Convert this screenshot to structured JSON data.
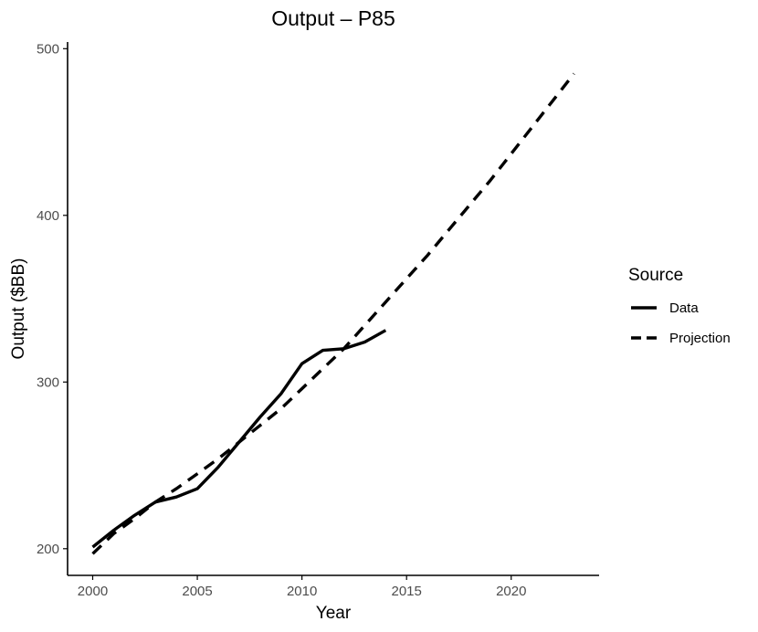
{
  "chart_data": {
    "type": "line",
    "title": "Output – P85",
    "xlabel": "Year",
    "ylabel": "Output ($BB)",
    "xlim": [
      1998.8,
      2024.2
    ],
    "ylim": [
      184,
      504
    ],
    "xticks": [
      2000,
      2005,
      2010,
      2015,
      2020
    ],
    "yticks": [
      200,
      300,
      400,
      500
    ],
    "grid": false,
    "legend": {
      "title": "Source",
      "placement": "right"
    },
    "series": [
      {
        "name": "Data",
        "line_style": "solid",
        "x": [
          2000,
          2001,
          2002,
          2003,
          2004,
          2005,
          2006,
          2007,
          2008,
          2009,
          2010,
          2011,
          2012,
          2013,
          2014
        ],
        "y": [
          201,
          211,
          220,
          228,
          231,
          236,
          249,
          264,
          279,
          293,
          311,
          319,
          320,
          324,
          331
        ]
      },
      {
        "name": "Projection",
        "line_style": "dashed",
        "x": [
          2000,
          2001,
          2002,
          2003,
          2004,
          2005,
          2006,
          2007,
          2008,
          2009,
          2010,
          2011,
          2012,
          2013,
          2014,
          2015,
          2016,
          2017,
          2018,
          2019,
          2020,
          2021,
          2022,
          2023
        ],
        "y": [
          197,
          209,
          218,
          228,
          236,
          245,
          254,
          264,
          274,
          284,
          296,
          308,
          320,
          334,
          348,
          362,
          376,
          391,
          406,
          421,
          437,
          453,
          469,
          485
        ]
      }
    ],
    "colors": {
      "line": "#000000",
      "axis": "#000000",
      "tick_label": "#4d4d4d"
    }
  }
}
